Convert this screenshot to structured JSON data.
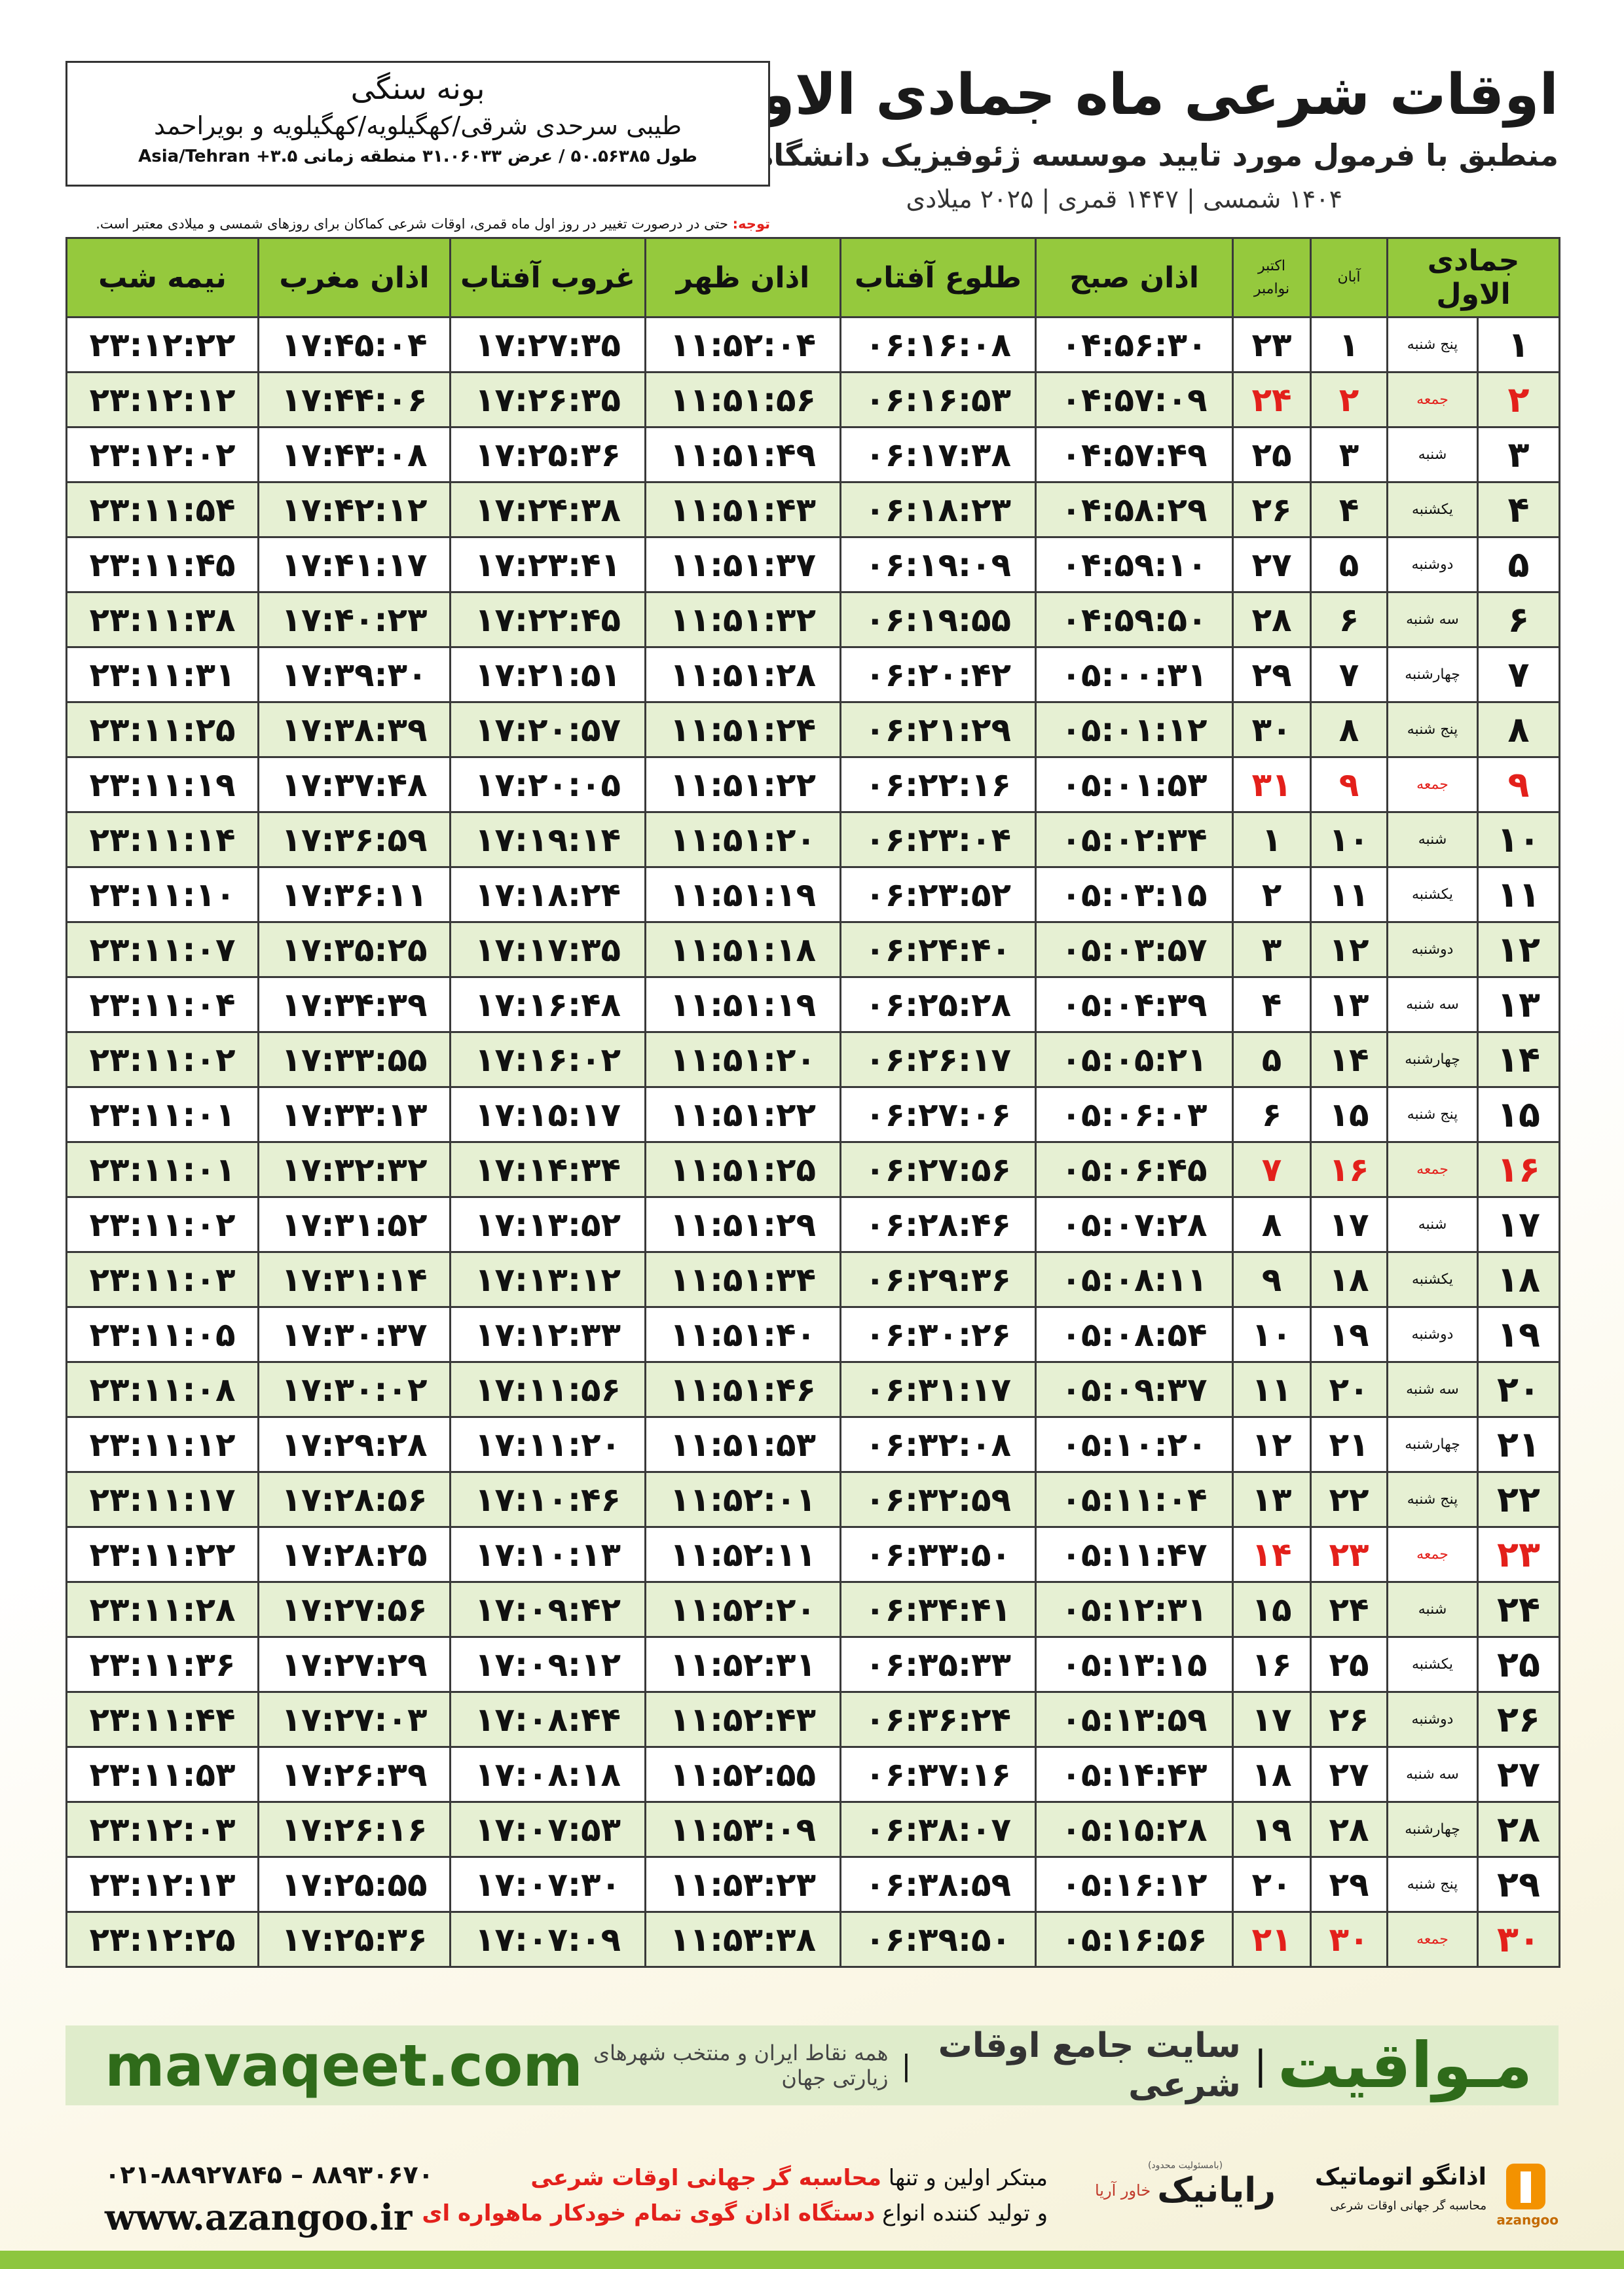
{
  "header": {
    "title": "اوقات شرعی ماه جمادی الاول",
    "subtitle": "منطبق با فرمول مورد تایید موسسه ژئوفیزیک دانشگاه تهران",
    "date_line": "۱۴۰۴ شمسی | ۱۴۴۷ قمری | ۲۰۲۵ میلادی"
  },
  "location": {
    "name": "بونه سنگی",
    "region": "طیبی سرحدی شرقی/کهگیلویه/کهگیلویه و بویراحمد",
    "coords": "طول ۵۰.۵۶۳۸۵ / عرض ۳۱.۰۶۰۳۳ منطقه زمانی Asia/Tehran +۳.۵"
  },
  "note": {
    "label": "توجه:",
    "text": "حتی در درصورت تغییر در روز اول ماه قمری، اوقات شرعی کماکان برای روزهای شمسی و میلادی معتبر است."
  },
  "table": {
    "columns": [
      "جمادی الاول",
      "آبان",
      [
        "اکتبر",
        "نوامبر"
      ],
      "اذان صبح",
      "طلوع آفتاب",
      "اذان ظهر",
      "غروب آفتاب",
      "اذان مغرب",
      "نیمه شب"
    ],
    "rows": [
      {
        "cells": [
          "۱",
          "پنج شنبه",
          "۱",
          "۲۳",
          "۰۴:۵۶:۳۰",
          "۰۶:۱۶:۰۸",
          "۱۱:۵۲:۰۴",
          "۱۷:۲۷:۳۵",
          "۱۷:۴۵:۰۴",
          "۲۳:۱۲:۲۲"
        ]
      },
      {
        "cells": [
          "۲",
          "جمعه",
          "۲",
          "۲۴",
          "۰۴:۵۷:۰۹",
          "۰۶:۱۶:۵۳",
          "۱۱:۵۱:۵۶",
          "۱۷:۲۶:۳۵",
          "۱۷:۴۴:۰۶",
          "۲۳:۱۲:۱۲"
        ],
        "color": "#e3201b"
      },
      {
        "cells": [
          "۳",
          "شنبه",
          "۳",
          "۲۵",
          "۰۴:۵۷:۴۹",
          "۰۶:۱۷:۳۸",
          "۱۱:۵۱:۴۹",
          "۱۷:۲۵:۳۶",
          "۱۷:۴۳:۰۸",
          "۲۳:۱۲:۰۲"
        ]
      },
      {
        "cells": [
          "۴",
          "یکشنبه",
          "۴",
          "۲۶",
          "۰۴:۵۸:۲۹",
          "۰۶:۱۸:۲۳",
          "۱۱:۵۱:۴۳",
          "۱۷:۲۴:۳۸",
          "۱۷:۴۲:۱۲",
          "۲۳:۱۱:۵۴"
        ]
      },
      {
        "cells": [
          "۵",
          "دوشنبه",
          "۵",
          "۲۷",
          "۰۴:۵۹:۱۰",
          "۰۶:۱۹:۰۹",
          "۱۱:۵۱:۳۷",
          "۱۷:۲۳:۴۱",
          "۱۷:۴۱:۱۷",
          "۲۳:۱۱:۴۵"
        ]
      },
      {
        "cells": [
          "۶",
          "سه شنبه",
          "۶",
          "۲۸",
          "۰۴:۵۹:۵۰",
          "۰۶:۱۹:۵۵",
          "۱۱:۵۱:۳۲",
          "۱۷:۲۲:۴۵",
          "۱۷:۴۰:۲۳",
          "۲۳:۱۱:۳۸"
        ]
      },
      {
        "cells": [
          "۷",
          "چهارشنبه",
          "۷",
          "۲۹",
          "۰۵:۰۰:۳۱",
          "۰۶:۲۰:۴۲",
          "۱۱:۵۱:۲۸",
          "۱۷:۲۱:۵۱",
          "۱۷:۳۹:۳۰",
          "۲۳:۱۱:۳۱"
        ]
      },
      {
        "cells": [
          "۸",
          "پنج شنبه",
          "۸",
          "۳۰",
          "۰۵:۰۱:۱۲",
          "۰۶:۲۱:۲۹",
          "۱۱:۵۱:۲۴",
          "۱۷:۲۰:۵۷",
          "۱۷:۳۸:۳۹",
          "۲۳:۱۱:۲۵"
        ]
      },
      {
        "cells": [
          "۹",
          "جمعه",
          "۹",
          "۳۱",
          "۰۵:۰۱:۵۳",
          "۰۶:۲۲:۱۶",
          "۱۱:۵۱:۲۲",
          "۱۷:۲۰:۰۵",
          "۱۷:۳۷:۴۸",
          "۲۳:۱۱:۱۹"
        ],
        "color": "#e3201b"
      },
      {
        "cells": [
          "۱۰",
          "شنبه",
          "۱۰",
          "۱",
          "۰۵:۰۲:۳۴",
          "۰۶:۲۳:۰۴",
          "۱۱:۵۱:۲۰",
          "۱۷:۱۹:۱۴",
          "۱۷:۳۶:۵۹",
          "۲۳:۱۱:۱۴"
        ]
      },
      {
        "cells": [
          "۱۱",
          "یکشنبه",
          "۱۱",
          "۲",
          "۰۵:۰۳:۱۵",
          "۰۶:۲۳:۵۲",
          "۱۱:۵۱:۱۹",
          "۱۷:۱۸:۲۴",
          "۱۷:۳۶:۱۱",
          "۲۳:۱۱:۱۰"
        ]
      },
      {
        "cells": [
          "۱۲",
          "دوشنبه",
          "۱۲",
          "۳",
          "۰۵:۰۳:۵۷",
          "۰۶:۲۴:۴۰",
          "۱۱:۵۱:۱۸",
          "۱۷:۱۷:۳۵",
          "۱۷:۳۵:۲۵",
          "۲۳:۱۱:۰۷"
        ]
      },
      {
        "cells": [
          "۱۳",
          "سه شنبه",
          "۱۳",
          "۴",
          "۰۵:۰۴:۳۹",
          "۰۶:۲۵:۲۸",
          "۱۱:۵۱:۱۹",
          "۱۷:۱۶:۴۸",
          "۱۷:۳۴:۳۹",
          "۲۳:۱۱:۰۴"
        ]
      },
      {
        "cells": [
          "۱۴",
          "چهارشنبه",
          "۱۴",
          "۵",
          "۰۵:۰۵:۲۱",
          "۰۶:۲۶:۱۷",
          "۱۱:۵۱:۲۰",
          "۱۷:۱۶:۰۲",
          "۱۷:۳۳:۵۵",
          "۲۳:۱۱:۰۲"
        ]
      },
      {
        "cells": [
          "۱۵",
          "پنج شنبه",
          "۱۵",
          "۶",
          "۰۵:۰۶:۰۳",
          "۰۶:۲۷:۰۶",
          "۱۱:۵۱:۲۲",
          "۱۷:۱۵:۱۷",
          "۱۷:۳۳:۱۳",
          "۲۳:۱۱:۰۱"
        ]
      },
      {
        "cells": [
          "۱۶",
          "جمعه",
          "۱۶",
          "۷",
          "۰۵:۰۶:۴۵",
          "۰۶:۲۷:۵۶",
          "۱۱:۵۱:۲۵",
          "۱۷:۱۴:۳۴",
          "۱۷:۳۲:۳۲",
          "۲۳:۱۱:۰۱"
        ],
        "color": "#e3201b"
      },
      {
        "cells": [
          "۱۷",
          "شنبه",
          "۱۷",
          "۸",
          "۰۵:۰۷:۲۸",
          "۰۶:۲۸:۴۶",
          "۱۱:۵۱:۲۹",
          "۱۷:۱۳:۵۲",
          "۱۷:۳۱:۵۲",
          "۲۳:۱۱:۰۲"
        ]
      },
      {
        "cells": [
          "۱۸",
          "یکشنبه",
          "۱۸",
          "۹",
          "۰۵:۰۸:۱۱",
          "۰۶:۲۹:۳۶",
          "۱۱:۵۱:۳۴",
          "۱۷:۱۳:۱۲",
          "۱۷:۳۱:۱۴",
          "۲۳:۱۱:۰۳"
        ]
      },
      {
        "cells": [
          "۱۹",
          "دوشنبه",
          "۱۹",
          "۱۰",
          "۰۵:۰۸:۵۴",
          "۰۶:۳۰:۲۶",
          "۱۱:۵۱:۴۰",
          "۱۷:۱۲:۳۳",
          "۱۷:۳۰:۳۷",
          "۲۳:۱۱:۰۵"
        ]
      },
      {
        "cells": [
          "۲۰",
          "سه شنبه",
          "۲۰",
          "۱۱",
          "۰۵:۰۹:۳۷",
          "۰۶:۳۱:۱۷",
          "۱۱:۵۱:۴۶",
          "۱۷:۱۱:۵۶",
          "۱۷:۳۰:۰۲",
          "۲۳:۱۱:۰۸"
        ]
      },
      {
        "cells": [
          "۲۱",
          "چهارشنبه",
          "۲۱",
          "۱۲",
          "۰۵:۱۰:۲۰",
          "۰۶:۳۲:۰۸",
          "۱۱:۵۱:۵۳",
          "۱۷:۱۱:۲۰",
          "۱۷:۲۹:۲۸",
          "۲۳:۱۱:۱۲"
        ]
      },
      {
        "cells": [
          "۲۲",
          "پنج شنبه",
          "۲۲",
          "۱۳",
          "۰۵:۱۱:۰۴",
          "۰۶:۳۲:۵۹",
          "۱۱:۵۲:۰۱",
          "۱۷:۱۰:۴۶",
          "۱۷:۲۸:۵۶",
          "۲۳:۱۱:۱۷"
        ]
      },
      {
        "cells": [
          "۲۳",
          "جمعه",
          "۲۳",
          "۱۴",
          "۰۵:۱۱:۴۷",
          "۰۶:۳۳:۵۰",
          "۱۱:۵۲:۱۱",
          "۱۷:۱۰:۱۳",
          "۱۷:۲۸:۲۵",
          "۲۳:۱۱:۲۲"
        ],
        "color": "#e3201b"
      },
      {
        "cells": [
          "۲۴",
          "شنبه",
          "۲۴",
          "۱۵",
          "۰۵:۱۲:۳۱",
          "۰۶:۳۴:۴۱",
          "۱۱:۵۲:۲۰",
          "۱۷:۰۹:۴۲",
          "۱۷:۲۷:۵۶",
          "۲۳:۱۱:۲۸"
        ]
      },
      {
        "cells": [
          "۲۵",
          "یکشنبه",
          "۲۵",
          "۱۶",
          "۰۵:۱۳:۱۵",
          "۰۶:۳۵:۳۳",
          "۱۱:۵۲:۳۱",
          "۱۷:۰۹:۱۲",
          "۱۷:۲۷:۲۹",
          "۲۳:۱۱:۳۶"
        ]
      },
      {
        "cells": [
          "۲۶",
          "دوشنبه",
          "۲۶",
          "۱۷",
          "۰۵:۱۳:۵۹",
          "۰۶:۳۶:۲۴",
          "۱۱:۵۲:۴۳",
          "۱۷:۰۸:۴۴",
          "۱۷:۲۷:۰۳",
          "۲۳:۱۱:۴۴"
        ]
      },
      {
        "cells": [
          "۲۷",
          "سه شنبه",
          "۲۷",
          "۱۸",
          "۰۵:۱۴:۴۳",
          "۰۶:۳۷:۱۶",
          "۱۱:۵۲:۵۵",
          "۱۷:۰۸:۱۸",
          "۱۷:۲۶:۳۹",
          "۲۳:۱۱:۵۳"
        ]
      },
      {
        "cells": [
          "۲۸",
          "چهارشنبه",
          "۲۸",
          "۱۹",
          "۰۵:۱۵:۲۸",
          "۰۶:۳۸:۰۷",
          "۱۱:۵۳:۰۹",
          "۱۷:۰۷:۵۳",
          "۱۷:۲۶:۱۶",
          "۲۳:۱۲:۰۳"
        ]
      },
      {
        "cells": [
          "۲۹",
          "پنج شنبه",
          "۲۹",
          "۲۰",
          "۰۵:۱۶:۱۲",
          "۰۶:۳۸:۵۹",
          "۱۱:۵۳:۲۳",
          "۱۷:۰۷:۳۰",
          "۱۷:۲۵:۵۵",
          "۲۳:۱۲:۱۳"
        ]
      },
      {
        "cells": [
          "۳۰",
          "جمعه",
          "۳۰",
          "۲۱",
          "۰۵:۱۶:۵۶",
          "۰۶:۳۹:۵۰",
          "۱۱:۵۳:۳۸",
          "۱۷:۰۷:۰۹",
          "۱۷:۲۵:۳۶",
          "۲۳:۱۲:۲۵"
        ],
        "color": "#e3201b"
      }
    ]
  },
  "banner": {
    "brand": "مـواقیت",
    "tagline": "سایت جامع اوقات شرعی",
    "coverage": "همه نقاط ایران و منتخب شهرهای زیارتی جهان",
    "url": "mavaqeet.com"
  },
  "footer": {
    "phone": "۰۲۱-۸۸۹۲۷۸۴۵ – ۸۸۹۳۰۶۷۰",
    "url": "www.azangoo.ir",
    "line1": {
      "text": "مبتکر اولین و تنها",
      "highlight": "محاسبه گر جهانی اوقات شرعی"
    },
    "line2": {
      "text": "و تولید کننده انواع",
      "highlight": "دستگاه اذان گوی تمام خودکار ماهواره ای"
    },
    "rayanik": {
      "name": "رایانیک",
      "partner": "خاور آریا",
      "note": "(بامسئولیت محدود)"
    },
    "azangoo": {
      "name": "اذانگو اتوماتیک",
      "latin": "azangoo",
      "slogan": "محاسبه گر جهانی اوقات شرعی"
    }
  }
}
